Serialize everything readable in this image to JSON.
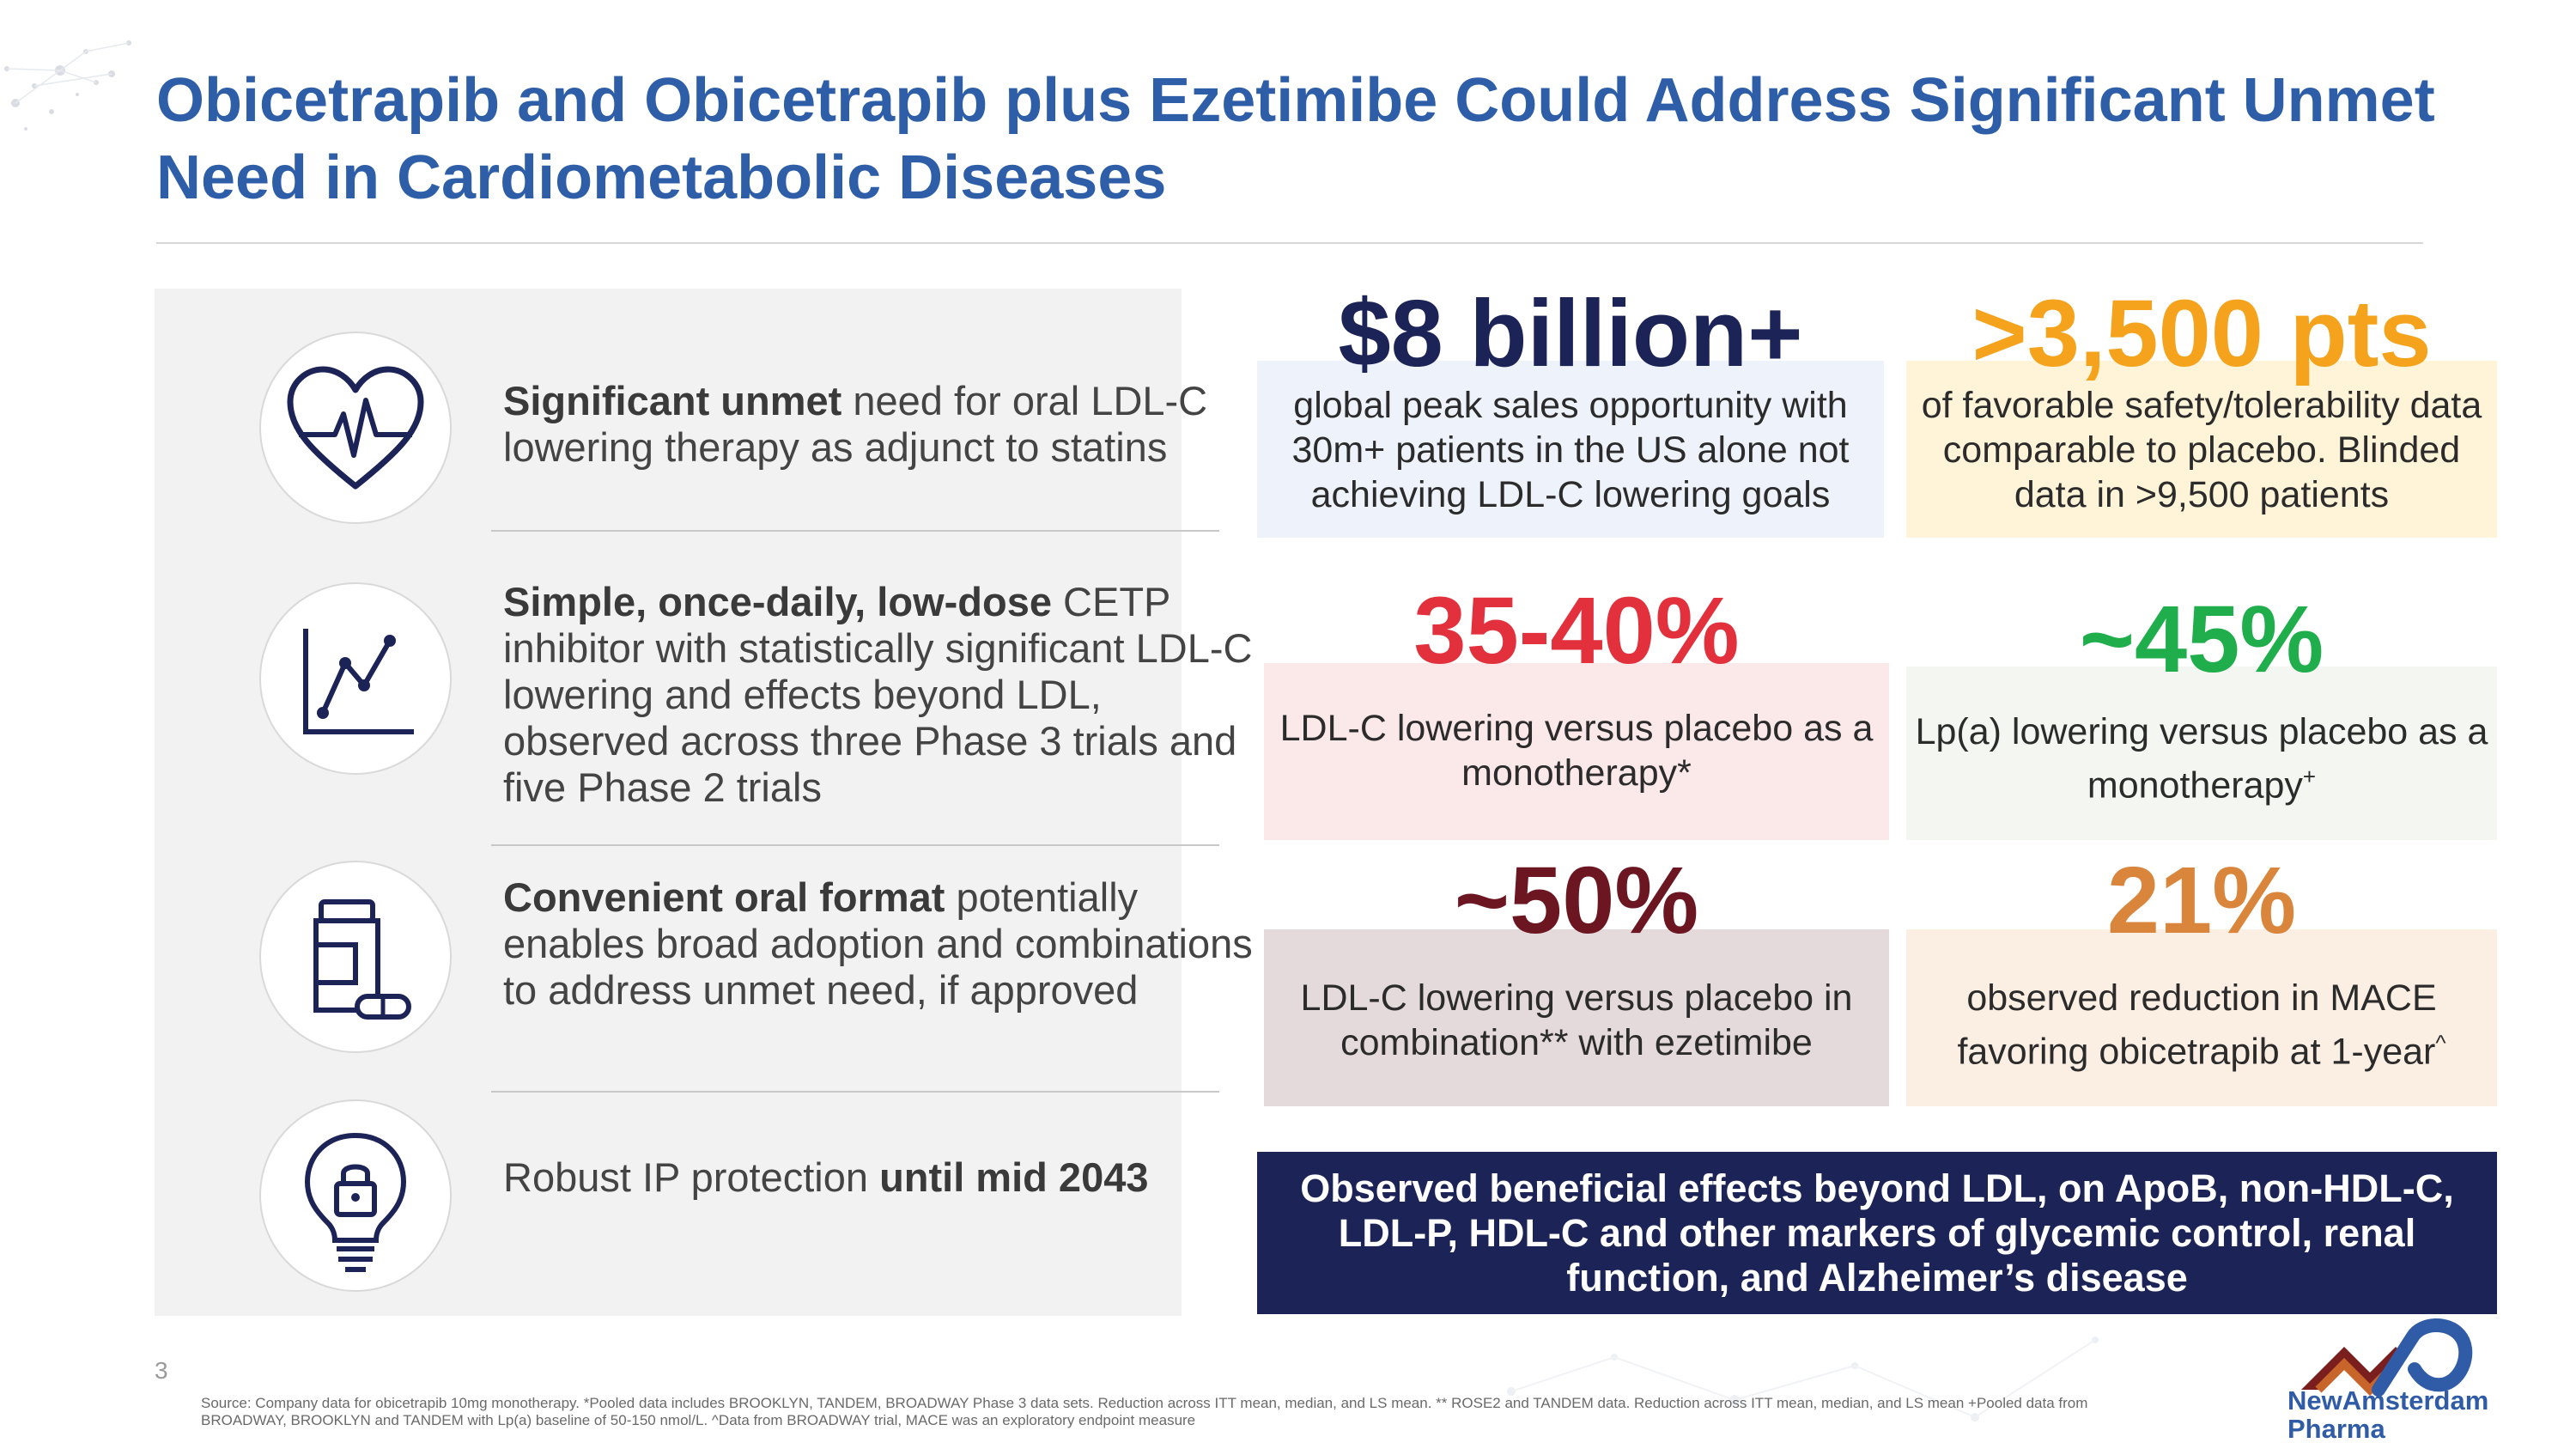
{
  "title": "Obicetrapib and Obicetrapib plus Ezetimibe Could Address Significant Unmet Need in Cardiometabolic Diseases",
  "features": [
    {
      "icon": "heartbeat-icon",
      "bold": "Significant unmet",
      "text": " need for oral LDL-C lowering therapy as adjunct to statins"
    },
    {
      "icon": "line-chart-icon",
      "bold": "Simple, once-daily, low-dose",
      "text": " CETP inhibitor with statistically significant LDL-C lowering and effects beyond LDL, observed across three Phase 3 trials and five Phase 2 trials"
    },
    {
      "icon": "pill-bottle-icon",
      "bold": "Convenient oral format",
      "text": " potentially enables broad adoption and combinations to address unmet need, if approved"
    },
    {
      "icon": "lightbulb-lock-icon",
      "prefix": "Robust IP protection ",
      "bold": "until mid 2043"
    }
  ],
  "stats": [
    {
      "value": "$8 billion+",
      "desc": "global peak sales opportunity with 30m+ patients in the US alone not achieving LDL-C lowering goals",
      "color": "#1c2357",
      "bg": "#eef3fb"
    },
    {
      "value": ">3,500 pts",
      "desc": "of favorable safety/tolerability data comparable to placebo. Blinded data in >9,500 patients",
      "color": "#f5a21c",
      "bg": "#fff4d8"
    },
    {
      "value": "35-40%",
      "desc": "LDL-C lowering versus placebo as a monotherapy*",
      "color": "#e2303c",
      "bg": "#fbe8e9"
    },
    {
      "value": "~45%",
      "desc_main": "Lp(a) lowering versus placebo as a monotherapy",
      "desc_sup": "+",
      "color": "#1fae4b",
      "bg": "#f3f6f1"
    },
    {
      "value": "~50%",
      "desc": "LDL-C lowering versus placebo in combination** with ezetimibe",
      "color": "#6b1620",
      "bg": "#e4dadc"
    },
    {
      "value": "21%",
      "desc_main": "observed reduction in MACE favoring obicetrapib at 1-year",
      "desc_sup": "^",
      "color": "#d9853b",
      "bg": "#fbeee3"
    }
  ],
  "banner": "Observed beneficial effects beyond LDL, on ApoB, non-HDL-C, LDL-P, HDL-C and other markers of glycemic control, renal function, and Alzheimer’s disease",
  "page_number": "3",
  "source": "Source: Company data for obicetrapib 10mg monotherapy. *Pooled data includes BROOKLYN, TANDEM, BROADWAY Phase 3 data sets. Reduction across ITT mean, median, and LS mean. ** ROSE2 and TANDEM data. Reduction across ITT mean, median, and LS mean +Pooled data from BROADWAY, BROOKLYN and TANDEM with Lp(a) baseline of 50-150 nmol/L. ^Data from BROADWAY trial, MACE was an exploratory endpoint measure",
  "logo": {
    "line1": "NewAmsterdam",
    "line2": "Pharma"
  }
}
